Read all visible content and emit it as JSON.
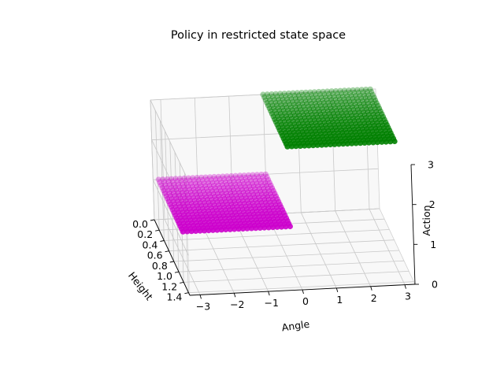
{
  "chart_data": {
    "type": "scatter",
    "projection": "3d",
    "title": "Policy in restricted state space",
    "xlabel": "Angle",
    "ylabel": "Height",
    "zlabel": "Action",
    "x_ticks": [
      "−3",
      "−2",
      "−1",
      "0",
      "1",
      "2",
      "3"
    ],
    "y_ticks": [
      "0.0",
      "0.2",
      "0.4",
      "0.6",
      "0.8",
      "1.0",
      "1.2",
      "1.4"
    ],
    "z_ticks": [
      "0",
      "1",
      "2",
      "3"
    ],
    "xlim": [
      -3.3,
      3.3
    ],
    "ylim": [
      0.0,
      1.45
    ],
    "zlim": [
      0,
      3
    ],
    "grid": true,
    "legend": "none",
    "series": [
      {
        "color": "#cc00cc",
        "action": 1,
        "angle_range": [
          -3.14,
          0.0
        ],
        "height_range": [
          0.0,
          1.0
        ],
        "samples_per_axis": [
          26,
          20
        ]
      },
      {
        "color": "#008000",
        "action": 3,
        "angle_range": [
          0.0,
          3.14
        ],
        "height_range": [
          0.0,
          1.0
        ],
        "samples_per_axis": [
          26,
          20
        ]
      }
    ]
  }
}
